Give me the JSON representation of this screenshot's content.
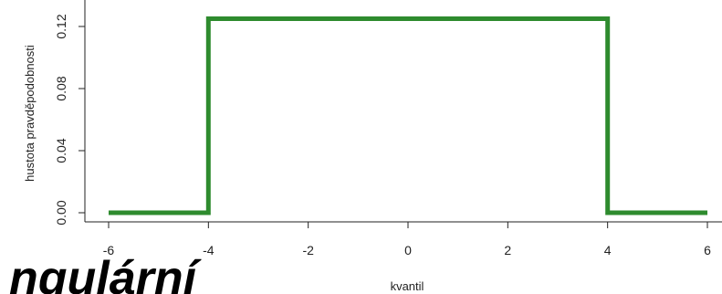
{
  "chart_data": {
    "type": "line",
    "xlabel": "kvantil",
    "ylabel": "hustota pravděpodobnosti",
    "xlim": [
      -6,
      6
    ],
    "ylim": [
      0,
      0.125
    ],
    "x_ticks": [
      -6,
      -4,
      -2,
      0,
      2,
      4,
      6
    ],
    "x_tick_labels": [
      "-6",
      "-4",
      "-2",
      "0",
      "2",
      "4",
      "6"
    ],
    "y_ticks": [
      0,
      0.04,
      0.08,
      0.12
    ],
    "y_tick_labels": [
      "0.00",
      "0.04",
      "0.08",
      "0.12"
    ],
    "series": [
      {
        "color": "#2e8b2e",
        "x": [
          -6,
          -4,
          -4,
          4,
          4,
          6
        ],
        "y": [
          0,
          0,
          0.125,
          0.125,
          0,
          0
        ]
      }
    ],
    "grid": false,
    "box": "left-bottom"
  },
  "overlay": {
    "text": "ngulární"
  }
}
